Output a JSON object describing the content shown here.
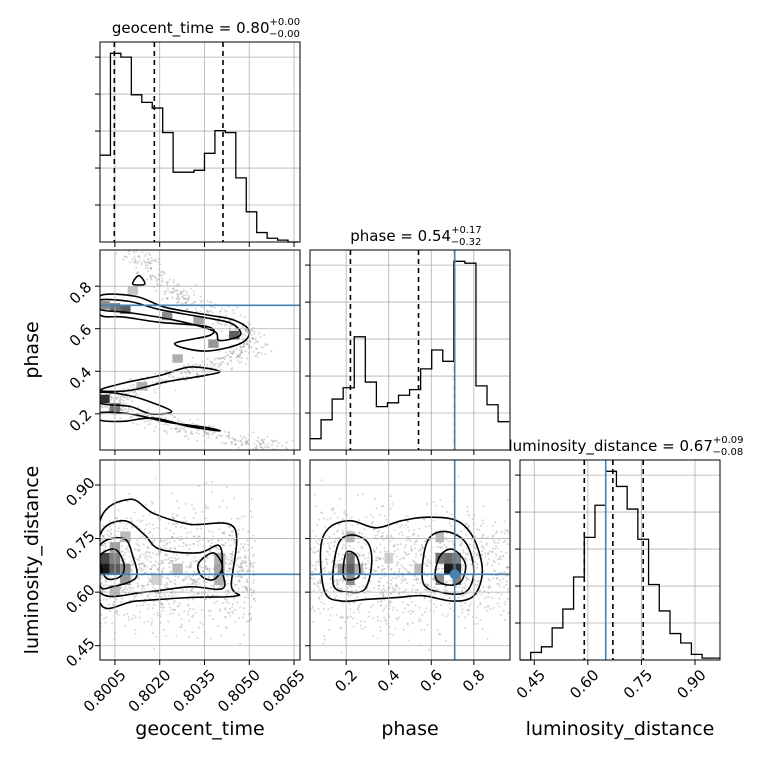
{
  "chart_data": {
    "type": "corner",
    "parameters": [
      "geocent_time",
      "phase",
      "luminosity_distance"
    ],
    "truth": {
      "phase": 0.71,
      "luminosity_distance": 0.65
    },
    "colors": {
      "hist": "#000000",
      "truth": "#4682b4",
      "grid": "#b0b0b0",
      "quantile": "#000000"
    },
    "titles": {
      "geocent_time": {
        "text": "geocent_time = 0.80",
        "plus": "+0.00",
        "minus": "−0.00"
      },
      "phase": {
        "text": "phase = 0.54",
        "plus": "+0.17",
        "minus": "−0.32"
      },
      "luminosity_distance": {
        "text": "luminosity_distance = 0.67",
        "plus": "+0.09",
        "minus": "−0.08"
      }
    },
    "axes": {
      "geocent_time": {
        "range": [
          0.8,
          0.8067
        ],
        "ticks": [
          0.8005,
          0.802,
          0.8035,
          0.805,
          0.8065
        ],
        "tick_labels": [
          "0.8005",
          "0.8020",
          "0.8035",
          "0.8050",
          "0.8065"
        ],
        "label": "geocent_time"
      },
      "phase": {
        "range": [
          0.03,
          0.97
        ],
        "ticks": [
          0.2,
          0.4,
          0.6,
          0.8
        ],
        "tick_labels": [
          "0.2",
          "0.4",
          "0.6",
          "0.8"
        ],
        "label": "phase"
      },
      "luminosity_distance": {
        "range": [
          0.41,
          0.97
        ],
        "ticks": [
          0.45,
          0.6,
          0.75,
          0.9
        ],
        "tick_labels": [
          "0.45",
          "0.60",
          "0.75",
          "0.90"
        ],
        "label": "luminosity_distance"
      }
    },
    "histograms": {
      "geocent_time": {
        "quantiles": [
          0.80048,
          0.80182,
          0.80412
        ],
        "edges": [
          0.8,
          0.80035,
          0.8007,
          0.80105,
          0.8014,
          0.80175,
          0.8021,
          0.80245,
          0.8028,
          0.80315,
          0.8035,
          0.80385,
          0.8042,
          0.80455,
          0.8049,
          0.80525,
          0.8056,
          0.80595,
          0.8063,
          0.80665
        ],
        "counts": [
          46,
          100,
          98,
          78,
          74,
          71,
          58,
          37,
          37,
          38,
          47,
          59,
          58,
          34,
          16,
          5,
          2,
          1,
          0
        ]
      },
      "phase": {
        "quantiles": [
          0.22,
          0.54,
          0.71
        ],
        "edges": [
          0.03,
          0.082,
          0.134,
          0.186,
          0.238,
          0.29,
          0.342,
          0.394,
          0.446,
          0.498,
          0.55,
          0.602,
          0.654,
          0.706,
          0.758,
          0.81,
          0.862,
          0.914,
          0.966
        ],
        "counts": [
          6,
          16,
          27,
          33,
          60,
          36,
          23,
          25,
          29,
          32,
          43,
          53,
          47,
          100,
          99,
          34,
          24,
          15
        ]
      },
      "luminosity_distance": {
        "quantiles": [
          0.59,
          0.67,
          0.755
        ],
        "edges": [
          0.41,
          0.44,
          0.47,
          0.5,
          0.53,
          0.56,
          0.59,
          0.62,
          0.65,
          0.68,
          0.71,
          0.74,
          0.77,
          0.8,
          0.83,
          0.86,
          0.89,
          0.92,
          0.95,
          0.97
        ],
        "counts": [
          0,
          4,
          7,
          17,
          27,
          44,
          65,
          82,
          100,
          92,
          80,
          64,
          40,
          26,
          14,
          9,
          3,
          1,
          1
        ]
      }
    },
    "pairs": {
      "phase|geocent_time": {
        "x": "geocent_time",
        "y": "phase",
        "density_cells": [
          {
            "x": 0.80015,
            "y": 0.27,
            "v": 0.9
          },
          {
            "x": 0.8005,
            "y": 0.23,
            "v": 0.6
          },
          {
            "x": 0.80015,
            "y": 0.71,
            "v": 0.5
          },
          {
            "x": 0.8005,
            "y": 0.7,
            "v": 0.6
          },
          {
            "x": 0.80085,
            "y": 0.69,
            "v": 0.7
          },
          {
            "x": 0.80225,
            "y": 0.66,
            "v": 0.5
          },
          {
            "x": 0.8033,
            "y": 0.64,
            "v": 0.4
          },
          {
            "x": 0.8045,
            "y": 0.57,
            "v": 0.7
          },
          {
            "x": 0.8038,
            "y": 0.53,
            "v": 0.45
          },
          {
            "x": 0.8026,
            "y": 0.46,
            "v": 0.35
          },
          {
            "x": 0.8014,
            "y": 0.33,
            "v": 0.35
          },
          {
            "x": 0.8011,
            "y": 0.78,
            "v": 0.25
          }
        ],
        "contours": [
          [
            [
              0.8,
              0.755
            ],
            [
              0.8012,
              0.752
            ],
            [
              0.8022,
              0.7
            ],
            [
              0.8036,
              0.665
            ],
            [
              0.8045,
              0.64
            ],
            [
              0.805,
              0.59
            ],
            [
              0.8047,
              0.53
            ],
            [
              0.8035,
              0.495
            ],
            [
              0.8025,
              0.53
            ],
            [
              0.8037,
              0.57
            ],
            [
              0.8036,
              0.61
            ],
            [
              0.802,
              0.63
            ],
            [
              0.8008,
              0.655
            ],
            [
              0.8,
              0.665
            ]
          ],
          [
            [
              0.8,
              0.735
            ],
            [
              0.801,
              0.728
            ],
            [
              0.802,
              0.69
            ],
            [
              0.8034,
              0.655
            ],
            [
              0.8044,
              0.625
            ],
            [
              0.8047,
              0.57
            ],
            [
              0.804,
              0.545
            ],
            [
              0.8038,
              0.59
            ],
            [
              0.8025,
              0.64
            ],
            [
              0.801,
              0.675
            ],
            [
              0.8,
              0.69
            ]
          ],
          [
            [
              0.8,
              0.31
            ],
            [
              0.801,
              0.31
            ],
            [
              0.8022,
              0.35
            ],
            [
              0.8035,
              0.38
            ],
            [
              0.804,
              0.4
            ],
            [
              0.803,
              0.42
            ],
            [
              0.802,
              0.38
            ],
            [
              0.8008,
              0.345
            ]
          ],
          [
            [
              0.8,
              0.205
            ],
            [
              0.801,
              0.2
            ],
            [
              0.8023,
              0.16
            ],
            [
              0.8036,
              0.135
            ],
            [
              0.804,
              0.12
            ],
            [
              0.803,
              0.14
            ],
            [
              0.8018,
              0.18
            ],
            [
              0.8008,
              0.165
            ],
            [
              0.8,
              0.17
            ]
          ],
          [
            [
              0.8,
              0.3
            ],
            [
              0.801,
              0.285
            ],
            [
              0.8018,
              0.25
            ],
            [
              0.8024,
              0.21
            ],
            [
              0.8017,
              0.2
            ],
            [
              0.801,
              0.235
            ],
            [
              0.8,
              0.25
            ]
          ],
          [
            [
              0.8011,
              0.81
            ],
            [
              0.8013,
              0.85
            ],
            [
              0.8015,
              0.81
            ]
          ]
        ],
        "scatter_band": [
          [
            0.8012,
            0.97
          ],
          [
            0.8015,
            0.9
          ],
          [
            0.802,
            0.82
          ],
          [
            0.8026,
            0.76
          ],
          [
            0.8033,
            0.71
          ],
          [
            0.804,
            0.66
          ],
          [
            0.8046,
            0.61
          ],
          [
            0.8051,
            0.55
          ],
          [
            0.8049,
            0.5
          ],
          [
            0.8044,
            0.46
          ],
          [
            0.8037,
            0.43
          ],
          [
            0.8029,
            0.39
          ],
          [
            0.802,
            0.35
          ],
          [
            0.8012,
            0.32
          ],
          [
            0.8006,
            0.28
          ],
          [
            0.8003,
            0.24
          ],
          [
            0.8008,
            0.21
          ],
          [
            0.8016,
            0.18
          ],
          [
            0.8025,
            0.15
          ],
          [
            0.8033,
            0.12
          ],
          [
            0.8042,
            0.09
          ],
          [
            0.8052,
            0.06
          ],
          [
            0.806,
            0.04
          ]
        ]
      },
      "luminosity_distance|geocent_time": {
        "x": "geocent_time",
        "y": "luminosity_distance",
        "density_cells": [
          {
            "x": 0.80015,
            "y": 0.665,
            "v": 1.0
          },
          {
            "x": 0.80015,
            "y": 0.695,
            "v": 0.8
          },
          {
            "x": 0.8005,
            "y": 0.665,
            "v": 0.7
          },
          {
            "x": 0.8005,
            "y": 0.695,
            "v": 0.55
          },
          {
            "x": 0.80085,
            "y": 0.665,
            "v": 0.5
          },
          {
            "x": 0.80085,
            "y": 0.635,
            "v": 0.45
          },
          {
            "x": 0.8005,
            "y": 0.725,
            "v": 0.4
          },
          {
            "x": 0.80085,
            "y": 0.755,
            "v": 0.3
          },
          {
            "x": 0.8026,
            "y": 0.665,
            "v": 0.3
          },
          {
            "x": 0.804,
            "y": 0.695,
            "v": 0.35
          },
          {
            "x": 0.804,
            "y": 0.665,
            "v": 0.4
          },
          {
            "x": 0.804,
            "y": 0.635,
            "v": 0.35
          },
          {
            "x": 0.8005,
            "y": 0.605,
            "v": 0.3
          },
          {
            "x": 0.8019,
            "y": 0.635,
            "v": 0.2
          }
        ],
        "contours": [
          [
            [
              0.8,
              0.8
            ],
            [
              0.801,
              0.86
            ],
            [
              0.8018,
              0.82
            ],
            [
              0.803,
              0.79
            ],
            [
              0.8045,
              0.78
            ],
            [
              0.8044,
              0.62
            ],
            [
              0.8046,
              0.59
            ],
            [
              0.803,
              0.585
            ],
            [
              0.8012,
              0.575
            ],
            [
              0.8,
              0.57
            ]
          ],
          [
            [
              0.8,
              0.76
            ],
            [
              0.8008,
              0.8
            ],
            [
              0.8015,
              0.76
            ],
            [
              0.802,
              0.72
            ],
            [
              0.8033,
              0.71
            ],
            [
              0.804,
              0.73
            ],
            [
              0.8041,
              0.66
            ],
            [
              0.8041,
              0.61
            ],
            [
              0.803,
              0.615
            ],
            [
              0.8015,
              0.6
            ],
            [
              0.8,
              0.6
            ]
          ],
          [
            [
              0.8,
              0.73
            ],
            [
              0.8008,
              0.75
            ],
            [
              0.8011,
              0.7
            ],
            [
              0.8012,
              0.64
            ],
            [
              0.8004,
              0.615
            ],
            [
              0.8,
              0.62
            ]
          ],
          [
            [
              0.8033,
              0.68
            ],
            [
              0.8038,
              0.71
            ],
            [
              0.8041,
              0.67
            ],
            [
              0.8038,
              0.635
            ],
            [
              0.8034,
              0.645
            ]
          ],
          [
            [
              0.8,
              0.7
            ],
            [
              0.8005,
              0.72
            ],
            [
              0.8008,
              0.68
            ],
            [
              0.8007,
              0.645
            ],
            [
              0.8002,
              0.64
            ]
          ]
        ],
        "scatter_box": {
          "x": [
            0.8,
            0.8052
          ],
          "y": [
            0.5,
            0.97
          ]
        }
      },
      "luminosity_distance|phase": {
        "x": "phase",
        "y": "luminosity_distance",
        "density_cells": [
          {
            "x": 0.68,
            "y": 0.665,
            "v": 1.0
          },
          {
            "x": 0.72,
            "y": 0.665,
            "v": 0.9
          },
          {
            "x": 0.64,
            "y": 0.695,
            "v": 0.6
          },
          {
            "x": 0.68,
            "y": 0.695,
            "v": 0.65
          },
          {
            "x": 0.72,
            "y": 0.695,
            "v": 0.55
          },
          {
            "x": 0.64,
            "y": 0.635,
            "v": 0.5
          },
          {
            "x": 0.72,
            "y": 0.635,
            "v": 0.55
          },
          {
            "x": 0.22,
            "y": 0.665,
            "v": 0.7
          },
          {
            "x": 0.22,
            "y": 0.695,
            "v": 0.6
          },
          {
            "x": 0.18,
            "y": 0.665,
            "v": 0.45
          },
          {
            "x": 0.22,
            "y": 0.635,
            "v": 0.5
          },
          {
            "x": 0.26,
            "y": 0.665,
            "v": 0.35
          },
          {
            "x": 0.54,
            "y": 0.665,
            "v": 0.3
          },
          {
            "x": 0.4,
            "y": 0.695,
            "v": 0.2
          },
          {
            "x": 0.64,
            "y": 0.755,
            "v": 0.3
          },
          {
            "x": 0.22,
            "y": 0.755,
            "v": 0.3
          }
        ],
        "contours": [
          [
            [
              0.08,
              0.72
            ],
            [
              0.12,
              0.78
            ],
            [
              0.22,
              0.8
            ],
            [
              0.34,
              0.78
            ],
            [
              0.46,
              0.8
            ],
            [
              0.58,
              0.81
            ],
            [
              0.72,
              0.8
            ],
            [
              0.8,
              0.75
            ],
            [
              0.84,
              0.66
            ],
            [
              0.8,
              0.59
            ],
            [
              0.7,
              0.575
            ],
            [
              0.56,
              0.59
            ],
            [
              0.44,
              0.585
            ],
            [
              0.3,
              0.58
            ],
            [
              0.18,
              0.575
            ],
            [
              0.1,
              0.6
            ]
          ],
          [
            [
              0.14,
              0.62
            ],
            [
              0.16,
              0.73
            ],
            [
              0.22,
              0.76
            ],
            [
              0.3,
              0.74
            ],
            [
              0.32,
              0.68
            ],
            [
              0.29,
              0.61
            ],
            [
              0.22,
              0.6
            ]
          ],
          [
            [
              0.56,
              0.63
            ],
            [
              0.58,
              0.74
            ],
            [
              0.66,
              0.77
            ],
            [
              0.76,
              0.74
            ],
            [
              0.8,
              0.66
            ],
            [
              0.76,
              0.6
            ],
            [
              0.64,
              0.6
            ]
          ],
          [
            [
              0.62,
              0.64
            ],
            [
              0.64,
              0.7
            ],
            [
              0.7,
              0.72
            ],
            [
              0.76,
              0.68
            ],
            [
              0.74,
              0.63
            ],
            [
              0.68,
              0.62
            ]
          ],
          [
            [
              0.19,
              0.64
            ],
            [
              0.2,
              0.71
            ],
            [
              0.25,
              0.7
            ],
            [
              0.26,
              0.645
            ]
          ]
        ],
        "scatter_box": {
          "x": [
            0.03,
            0.97
          ],
          "y": [
            0.5,
            0.97
          ]
        }
      }
    }
  }
}
